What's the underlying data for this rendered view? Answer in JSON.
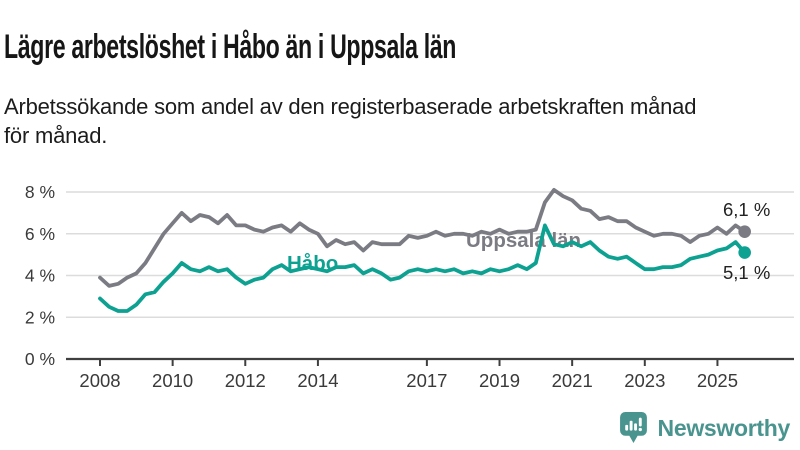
{
  "header": {
    "title": "Lägre arbetslöshet i Håbo än i Uppsala län",
    "subtitle": "Arbetssökande som andel av den registerbaserade arbetskraften månad\nför månad."
  },
  "logo": {
    "text": "Newsworthy",
    "color": "#4a948f"
  },
  "colors": {
    "habo_teal": "#0da192",
    "uppsala_gray": "#7b7b83",
    "grid": "#dcdcdc",
    "axis": "#3f3f3f",
    "tick_text": "#3a3a3a",
    "value_text": "#222222"
  },
  "chart_data": {
    "type": "line",
    "title": "Lägre arbetslöshet i Håbo än i Uppsala län",
    "xlabel": "",
    "ylabel": "Arbetssökande som andel av den registerbaserade arbetskraften",
    "ylim": [
      0,
      8
    ],
    "xlim": [
      2007.05,
      2027.1
    ],
    "grid": "horizontal",
    "legend_position": "inline-labels",
    "y_ticks": [
      {
        "value": 0,
        "label": "0 %"
      },
      {
        "value": 2,
        "label": "2 %"
      },
      {
        "value": 4,
        "label": "4 %"
      },
      {
        "value": 6,
        "label": "6 %"
      },
      {
        "value": 8,
        "label": "8 %"
      }
    ],
    "x_ticks": [
      {
        "value": 2008,
        "label": "2008"
      },
      {
        "value": 2010,
        "label": "2010"
      },
      {
        "value": 2012,
        "label": "2012"
      },
      {
        "value": 2014,
        "label": "2014"
      },
      {
        "value": 2017,
        "label": "2017"
      },
      {
        "value": 2019,
        "label": "2019"
      },
      {
        "value": 2021,
        "label": "2021"
      },
      {
        "value": 2023,
        "label": "2023"
      },
      {
        "value": 2025,
        "label": "2025"
      }
    ],
    "series": [
      {
        "name": "Uppsala län",
        "inline_label": "Uppsala län",
        "end_label": "6,1 %",
        "end_value": 6.1,
        "color": "#7b7b83",
        "points": [
          [
            2008,
            3.9
          ],
          [
            2008.25,
            3.5
          ],
          [
            2008.5,
            3.6
          ],
          [
            2008.75,
            3.9
          ],
          [
            2009,
            4.1
          ],
          [
            2009.25,
            4.6
          ],
          [
            2009.5,
            5.3
          ],
          [
            2009.75,
            6.0
          ],
          [
            2010,
            6.5
          ],
          [
            2010.25,
            7.0
          ],
          [
            2010.5,
            6.6
          ],
          [
            2010.75,
            6.9
          ],
          [
            2011,
            6.8
          ],
          [
            2011.25,
            6.5
          ],
          [
            2011.5,
            6.9
          ],
          [
            2011.75,
            6.4
          ],
          [
            2012,
            6.4
          ],
          [
            2012.25,
            6.2
          ],
          [
            2012.5,
            6.1
          ],
          [
            2012.75,
            6.3
          ],
          [
            2013,
            6.4
          ],
          [
            2013.25,
            6.1
          ],
          [
            2013.5,
            6.5
          ],
          [
            2013.75,
            6.2
          ],
          [
            2014,
            6.0
          ],
          [
            2014.25,
            5.4
          ],
          [
            2014.5,
            5.7
          ],
          [
            2014.75,
            5.5
          ],
          [
            2015,
            5.6
          ],
          [
            2015.25,
            5.2
          ],
          [
            2015.5,
            5.6
          ],
          [
            2015.75,
            5.5
          ],
          [
            2016,
            5.5
          ],
          [
            2016.25,
            5.5
          ],
          [
            2016.5,
            5.9
          ],
          [
            2016.75,
            5.8
          ],
          [
            2017,
            5.9
          ],
          [
            2017.25,
            6.1
          ],
          [
            2017.5,
            5.9
          ],
          [
            2017.75,
            6.0
          ],
          [
            2018,
            6.0
          ],
          [
            2018.25,
            5.9
          ],
          [
            2018.5,
            6.1
          ],
          [
            2018.75,
            6.0
          ],
          [
            2019,
            6.2
          ],
          [
            2019.25,
            6.0
          ],
          [
            2019.5,
            6.1
          ],
          [
            2019.75,
            6.1
          ],
          [
            2020,
            6.2
          ],
          [
            2020.25,
            7.5
          ],
          [
            2020.5,
            8.1
          ],
          [
            2020.75,
            7.8
          ],
          [
            2021,
            7.6
          ],
          [
            2021.25,
            7.2
          ],
          [
            2021.5,
            7.1
          ],
          [
            2021.75,
            6.7
          ],
          [
            2022,
            6.8
          ],
          [
            2022.25,
            6.6
          ],
          [
            2022.5,
            6.6
          ],
          [
            2022.75,
            6.3
          ],
          [
            2023,
            6.1
          ],
          [
            2023.25,
            5.9
          ],
          [
            2023.5,
            6.0
          ],
          [
            2023.75,
            6.0
          ],
          [
            2024,
            5.9
          ],
          [
            2024.25,
            5.6
          ],
          [
            2024.5,
            5.9
          ],
          [
            2024.75,
            6.0
          ],
          [
            2025,
            6.3
          ],
          [
            2025.25,
            6.0
          ],
          [
            2025.5,
            6.4
          ],
          [
            2025.75,
            6.1
          ]
        ]
      },
      {
        "name": "Håbo",
        "inline_label": "Håbo",
        "end_label": "5,1 %",
        "end_value": 5.1,
        "color": "#0da192",
        "points": [
          [
            2008,
            2.9
          ],
          [
            2008.25,
            2.5
          ],
          [
            2008.5,
            2.3
          ],
          [
            2008.75,
            2.3
          ],
          [
            2009,
            2.6
          ],
          [
            2009.25,
            3.1
          ],
          [
            2009.5,
            3.2
          ],
          [
            2009.75,
            3.7
          ],
          [
            2010,
            4.1
          ],
          [
            2010.25,
            4.6
          ],
          [
            2010.5,
            4.3
          ],
          [
            2010.75,
            4.2
          ],
          [
            2011,
            4.4
          ],
          [
            2011.25,
            4.2
          ],
          [
            2011.5,
            4.3
          ],
          [
            2011.75,
            3.9
          ],
          [
            2012,
            3.6
          ],
          [
            2012.25,
            3.8
          ],
          [
            2012.5,
            3.9
          ],
          [
            2012.75,
            4.3
          ],
          [
            2013,
            4.5
          ],
          [
            2013.25,
            4.2
          ],
          [
            2013.5,
            4.3
          ],
          [
            2013.75,
            4.4
          ],
          [
            2014,
            4.3
          ],
          [
            2014.25,
            4.2
          ],
          [
            2014.5,
            4.4
          ],
          [
            2014.75,
            4.4
          ],
          [
            2015,
            4.5
          ],
          [
            2015.25,
            4.1
          ],
          [
            2015.5,
            4.3
          ],
          [
            2015.75,
            4.1
          ],
          [
            2016,
            3.8
          ],
          [
            2016.25,
            3.9
          ],
          [
            2016.5,
            4.2
          ],
          [
            2016.75,
            4.3
          ],
          [
            2017,
            4.2
          ],
          [
            2017.25,
            4.3
          ],
          [
            2017.5,
            4.2
          ],
          [
            2017.75,
            4.3
          ],
          [
            2018,
            4.1
          ],
          [
            2018.25,
            4.2
          ],
          [
            2018.5,
            4.1
          ],
          [
            2018.75,
            4.3
          ],
          [
            2019,
            4.2
          ],
          [
            2019.25,
            4.3
          ],
          [
            2019.5,
            4.5
          ],
          [
            2019.75,
            4.3
          ],
          [
            2020,
            4.6
          ],
          [
            2020.25,
            6.4
          ],
          [
            2020.5,
            5.5
          ],
          [
            2020.75,
            5.4
          ],
          [
            2021,
            5.6
          ],
          [
            2021.25,
            5.4
          ],
          [
            2021.5,
            5.6
          ],
          [
            2021.75,
            5.2
          ],
          [
            2022,
            4.9
          ],
          [
            2022.25,
            4.8
          ],
          [
            2022.5,
            4.9
          ],
          [
            2022.75,
            4.6
          ],
          [
            2023,
            4.3
          ],
          [
            2023.25,
            4.3
          ],
          [
            2023.5,
            4.4
          ],
          [
            2023.75,
            4.4
          ],
          [
            2024,
            4.5
          ],
          [
            2024.25,
            4.8
          ],
          [
            2024.5,
            4.9
          ],
          [
            2024.75,
            5.0
          ],
          [
            2025,
            5.2
          ],
          [
            2025.25,
            5.3
          ],
          [
            2025.5,
            5.6
          ],
          [
            2025.75,
            5.1
          ]
        ]
      }
    ]
  }
}
